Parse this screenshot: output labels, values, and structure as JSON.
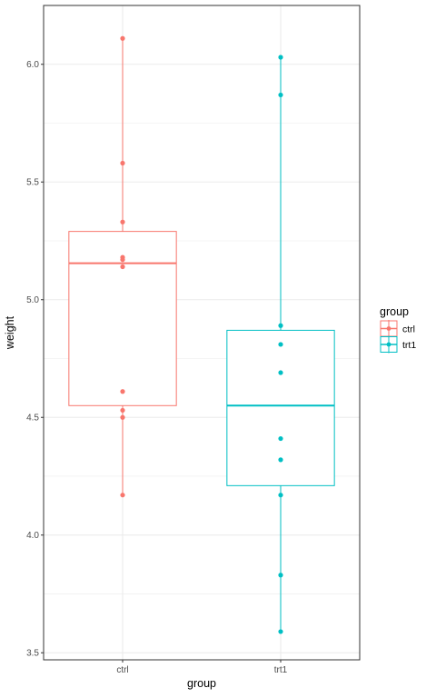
{
  "chart_data": {
    "type": "boxplot",
    "xlabel": "group",
    "ylabel": "weight",
    "categories": [
      "ctrl",
      "trt1"
    ],
    "ylim": [
      3.47,
      6.25
    ],
    "y_ticks": [
      3.5,
      4.0,
      4.5,
      5.0,
      5.5,
      6.0
    ],
    "y_tick_labels": [
      "3.5",
      "4.0",
      "4.5",
      "5.0",
      "5.5",
      "6.0"
    ],
    "grid": true,
    "legend": {
      "title": "group",
      "position": "right",
      "entries": [
        {
          "label": "ctrl",
          "color": "#F8766D"
        },
        {
          "label": "trt1",
          "color": "#00BFC4"
        }
      ]
    },
    "groups": [
      {
        "category": "ctrl",
        "color": "#F8766D",
        "min": 4.17,
        "q1": 4.55,
        "median": 5.155,
        "q3": 5.29,
        "max": 6.11,
        "points": [
          4.17,
          5.58,
          5.18,
          6.11,
          4.5,
          4.61,
          5.17,
          4.53,
          5.33,
          5.14
        ]
      },
      {
        "category": "trt1",
        "color": "#00BFC4",
        "min": 3.59,
        "q1": 4.21,
        "median": 4.55,
        "q3": 4.87,
        "max": 6.03,
        "points": [
          4.81,
          4.17,
          4.41,
          3.59,
          5.87,
          3.83,
          6.03,
          4.89,
          4.32,
          4.69
        ]
      }
    ]
  }
}
